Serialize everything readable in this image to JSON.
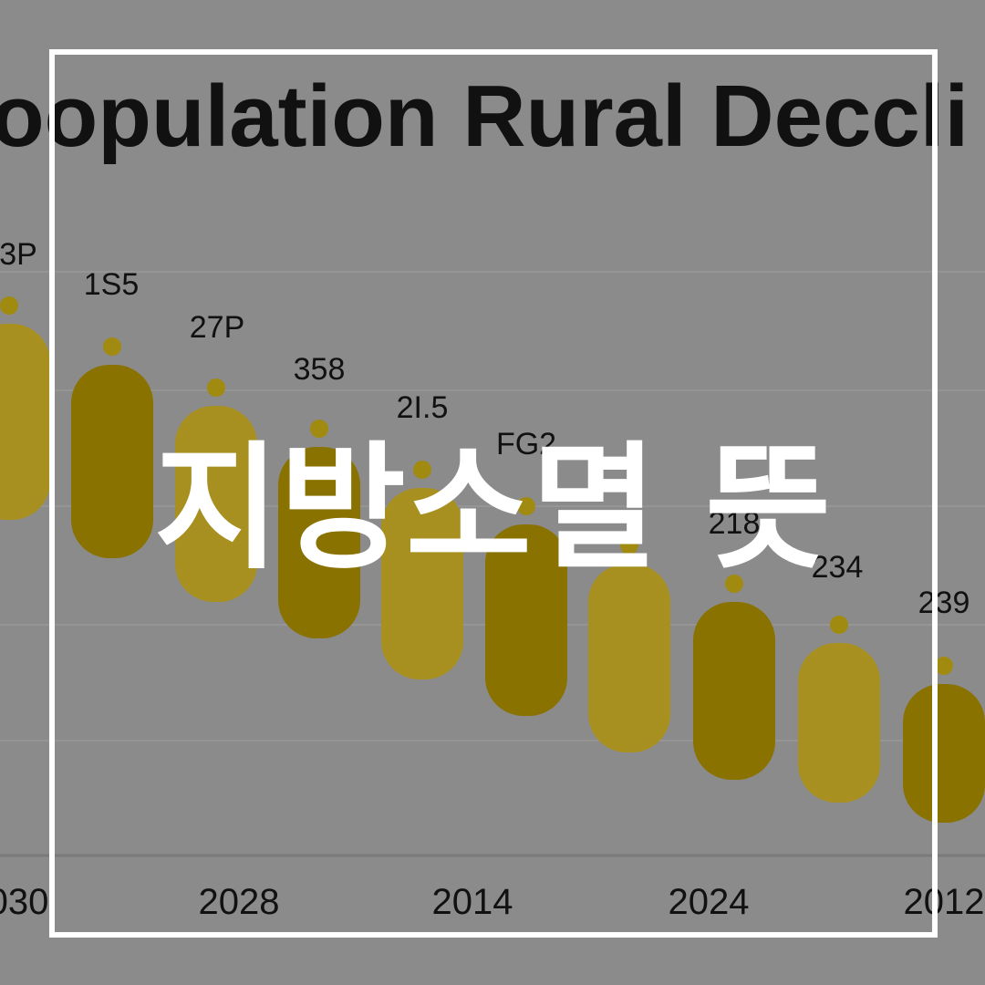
{
  "background_chart": {
    "title": "oopulation Rural Deccli",
    "value_labels": [
      "3P",
      "1S5",
      "27P",
      "358",
      "2I.5",
      "FG2",
      "218",
      "234",
      "239"
    ],
    "x_labels": [
      "030",
      "2028",
      "2014",
      "2024",
      "2012"
    ]
  },
  "overlay": {
    "headline": "지방소멸 뜻"
  }
}
